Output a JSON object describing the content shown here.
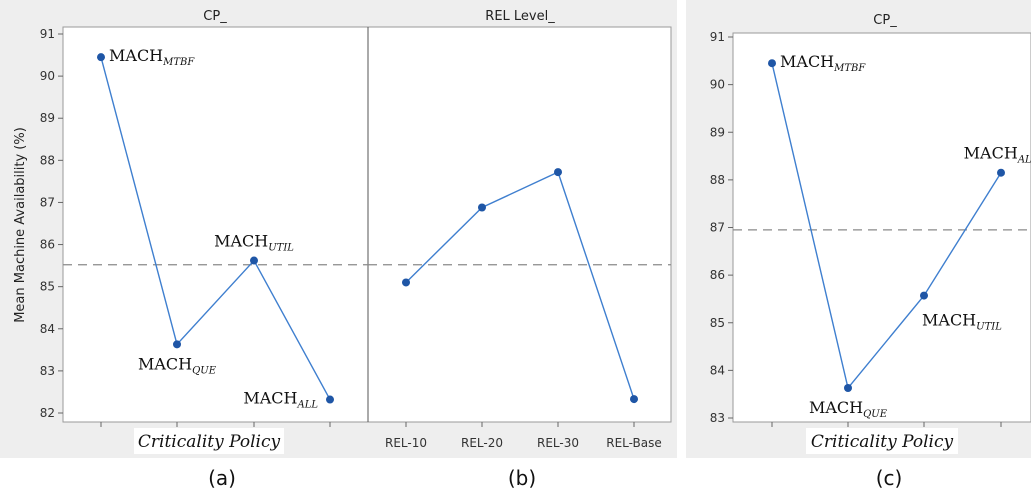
{
  "y_axis_label": "Mean Machine Availability (%)",
  "chart_data": [
    {
      "type": "line",
      "panel": "a",
      "header": "CP_",
      "caption": "(a)",
      "xlabel": "Criticality Policy",
      "ylabel": "Mean Machine Availability (%)",
      "ylim": [
        81.8,
        91.2
      ],
      "yticks": [
        82,
        83,
        84,
        85,
        86,
        87,
        88,
        89,
        90,
        91
      ],
      "mean_line": 85.52,
      "points": [
        {
          "value": 90.45,
          "name": "MACH",
          "sub": "MTBF",
          "pos": "right"
        },
        {
          "value": 83.63,
          "name": "MACH",
          "sub": "QUE",
          "pos": "below"
        },
        {
          "value": 85.62,
          "name": "MACH",
          "sub": "UTIL",
          "pos": "above"
        },
        {
          "value": 82.32,
          "name": "MACH",
          "sub": "ALL",
          "pos": "left"
        }
      ]
    },
    {
      "type": "line",
      "panel": "b",
      "header": "REL Level_",
      "caption": "(b)",
      "xlabel": "",
      "ylim": [
        81.8,
        91.2
      ],
      "mean_line": 85.52,
      "categories": [
        "REL-10",
        "REL-20",
        "REL-30",
        "REL-Base"
      ],
      "values": [
        85.1,
        86.88,
        87.72,
        82.33
      ]
    },
    {
      "type": "line",
      "panel": "c",
      "header": "CP_",
      "caption": "(c)",
      "xlabel": "Criticality Policy",
      "ylim": [
        82.8,
        91.2
      ],
      "yticks": [
        83,
        84,
        85,
        86,
        87,
        88,
        89,
        90,
        91
      ],
      "mean_line": 86.95,
      "points": [
        {
          "value": 90.45,
          "name": "MACH",
          "sub": "MTBF",
          "pos": "right"
        },
        {
          "value": 83.63,
          "name": "MACH",
          "sub": "QUE",
          "pos": "below"
        },
        {
          "value": 85.57,
          "name": "MACH",
          "sub": "UTIL",
          "pos": "belowright"
        },
        {
          "value": 88.15,
          "name": "MACH",
          "sub": "ALL",
          "pos": "above"
        }
      ]
    }
  ]
}
